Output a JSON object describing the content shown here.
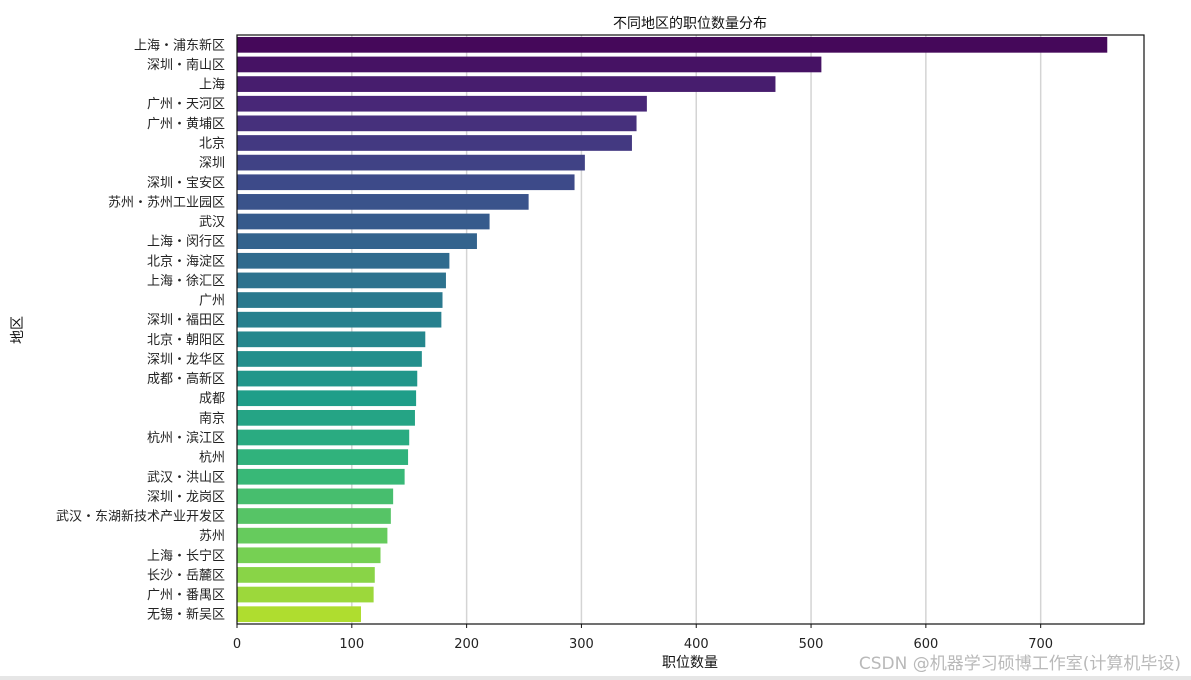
{
  "chart_data": {
    "type": "bar",
    "orientation": "horizontal",
    "title": "不同地区的职位数量分布",
    "xlabel": "职位数量",
    "ylabel": "地区",
    "xlim": [
      0,
      790
    ],
    "xticks": [
      0,
      100,
      200,
      300,
      400,
      500,
      600,
      700
    ],
    "grid": "vertical",
    "palette": "viridis",
    "categories": [
      "上海・浦东新区",
      "深圳・南山区",
      "上海",
      "广州・天河区",
      "广州・黄埔区",
      "北京",
      "深圳",
      "深圳・宝安区",
      "苏州・苏州工业园区",
      "武汉",
      "上海・闵行区",
      "北京・海淀区",
      "上海・徐汇区",
      "广州",
      "深圳・福田区",
      "北京・朝阳区",
      "深圳・龙华区",
      "成都・高新区",
      "成都",
      "南京",
      "杭州・滨江区",
      "杭州",
      "武汉・洪山区",
      "深圳・龙岗区",
      "武汉・东湖新技术产业开发区",
      "苏州",
      "上海・长宁区",
      "长沙・岳麓区",
      "广州・番禺区",
      "无锡・新吴区"
    ],
    "values": [
      758,
      509,
      469,
      357,
      348,
      344,
      303,
      294,
      254,
      220,
      209,
      185,
      182,
      179,
      178,
      164,
      161,
      157,
      156,
      155,
      150,
      149,
      146,
      136,
      134,
      131,
      125,
      120,
      119,
      108
    ]
  },
  "watermark": "CSDN @机器学习硕博工作室(计算机毕设)"
}
